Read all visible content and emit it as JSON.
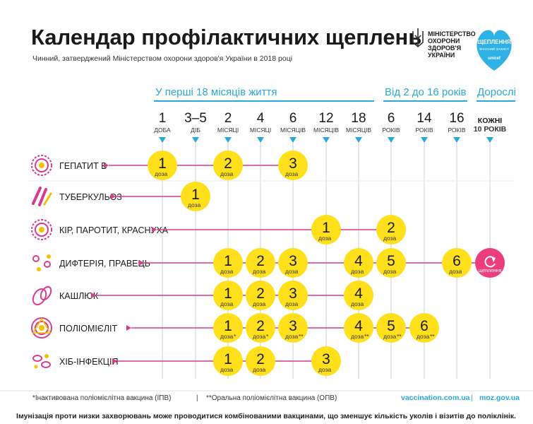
{
  "title": "Календар профілактичних щеплень",
  "subtitle": "Чинний, затверджений Міністерством охорони здоров'я України в 2018 році",
  "ministry": {
    "lines": [
      "МІНІСТЕРСТВО",
      "ОХОРОНИ",
      "ЗДОРОВ'Я",
      "УКРАЇНИ"
    ],
    "emblem_icon": "trident-icon"
  },
  "partner_badge": {
    "line1": "ЩЕПЛЕННЯ",
    "line2": "ВЧАСНИЙ ЗАХИСТ",
    "brand": "unicef",
    "icon": "heart-icon",
    "color": "#2fb1e6"
  },
  "groups": [
    {
      "label": "У перші 18 місяців життя",
      "span": [
        0,
        6
      ]
    },
    {
      "label": "Від 2 до 16 років",
      "span": [
        7,
        9
      ]
    },
    {
      "label": "Дорослі",
      "span": [
        10,
        10
      ]
    }
  ],
  "ages": [
    {
      "num": "1",
      "unit": "ДОБА"
    },
    {
      "num": "3–5",
      "unit": "ДІБ"
    },
    {
      "num": "2",
      "unit": "МІСЯЦІ"
    },
    {
      "num": "4",
      "unit": "МІСЯЦІ"
    },
    {
      "num": "6",
      "unit": "МІСЯЦІВ"
    },
    {
      "num": "12",
      "unit": "МІСЯЦІВ"
    },
    {
      "num": "18",
      "unit": "МІСЯЦІВ"
    },
    {
      "num": "6",
      "unit": "РОКІВ"
    },
    {
      "num": "14",
      "unit": "РОКІВ"
    },
    {
      "num": "16",
      "unit": "РОКІВ"
    },
    {
      "num": "КОЖНІ",
      "unit": "10 РОКІВ"
    }
  ],
  "dose_word": "доза",
  "revaccination_label": "щеплення",
  "diseases": [
    {
      "name": "ГЕПАТИТ В",
      "icon": "hepatitis-b-virus-icon",
      "doses": [
        {
          "col": 0,
          "n": "1"
        },
        {
          "col": 2,
          "n": "2"
        },
        {
          "col": 4,
          "n": "3"
        }
      ]
    },
    {
      "name": "ТУБЕРКУЛЬОЗ",
      "icon": "tuberculosis-bacteria-icon",
      "doses": [
        {
          "col": 1,
          "n": "1"
        }
      ]
    },
    {
      "name": "КІР, ПАРОТИТ, КРАСНУХА",
      "icon": "measles-virus-icon",
      "doses": [
        {
          "col": 5,
          "n": "1"
        },
        {
          "col": 7,
          "n": "2"
        }
      ]
    },
    {
      "name": "ДИФТЕРІЯ, ПРАВЕЦЬ",
      "icon": "diphtheria-bacteria-icon",
      "doses": [
        {
          "col": 2,
          "n": "1"
        },
        {
          "col": 3,
          "n": "2"
        },
        {
          "col": 4,
          "n": "3"
        },
        {
          "col": 6,
          "n": "4"
        },
        {
          "col": 7,
          "n": "5"
        },
        {
          "col": 9,
          "n": "6"
        }
      ],
      "revaccination": {
        "col": 10
      }
    },
    {
      "name": "КАШЛЮК",
      "icon": "pertussis-bacteria-icon",
      "doses": [
        {
          "col": 2,
          "n": "1"
        },
        {
          "col": 3,
          "n": "2"
        },
        {
          "col": 4,
          "n": "3"
        },
        {
          "col": 6,
          "n": "4"
        }
      ]
    },
    {
      "name": "ПОЛІОМІЄЛІТ",
      "icon": "polio-virus-icon",
      "doses": [
        {
          "col": 2,
          "n": "1",
          "mark": "*"
        },
        {
          "col": 3,
          "n": "2",
          "mark": "*"
        },
        {
          "col": 4,
          "n": "3",
          "mark": "**"
        },
        {
          "col": 6,
          "n": "4",
          "mark": "**"
        },
        {
          "col": 7,
          "n": "5",
          "mark": "**"
        },
        {
          "col": 8,
          "n": "6",
          "mark": "**"
        }
      ]
    },
    {
      "name": "ХІБ-ІНФЕКЦІЯ",
      "icon": "hib-bacteria-icon",
      "doses": [
        {
          "col": 2,
          "n": "1"
        },
        {
          "col": 3,
          "n": "2"
        },
        {
          "col": 5,
          "n": "3"
        }
      ]
    }
  ],
  "footnotes": [
    "*Інактивована поліомієлітна вакцина (ІПВ)",
    "**Оральна поліомієлітна вакцина (ОПВ)"
  ],
  "links": [
    "vaccination.com.ua",
    "moz.gov.ua"
  ],
  "bottom_note": "Імунізація проти низки захворювань може проводитися комбінованими вакцинами, що зменшує кількість уколів і візитів до поліклінік.",
  "colors": {
    "accent_blue": "#2aa7dd",
    "dose_yellow": "#ffe01a",
    "disease_magenta": "#d93c8e",
    "revaccination_pink": "#ec3d7d",
    "grid": "#cfcfcf"
  }
}
